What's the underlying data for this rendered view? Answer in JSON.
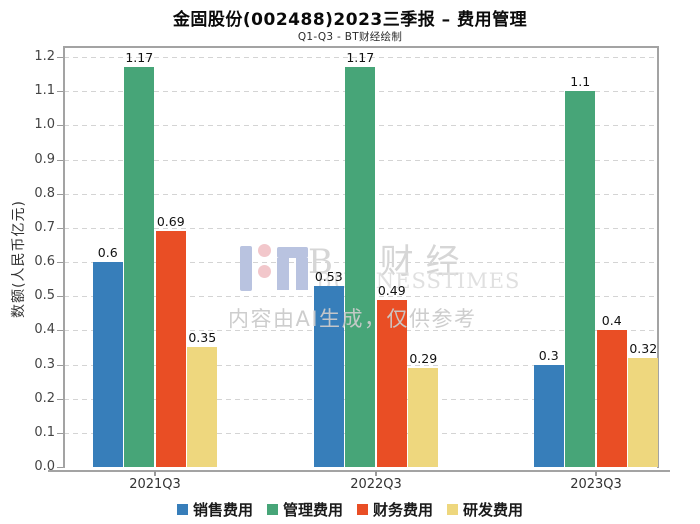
{
  "title": "金固股份(002488)2023三季报 – 费用管理",
  "subtitle": "Q1-Q3 - BT财经绘制",
  "watermark": {
    "brand_cn": "BT财经",
    "brand_en": "BUSINESSTIMES",
    "ai_notice": "内容由AI生成，仅供参考"
  },
  "chart_data": {
    "type": "bar",
    "title": "金固股份(002488)2023三季报 – 费用管理",
    "subtitle": "Q1-Q3 - BT财经绘制",
    "categories": [
      "2021Q3",
      "2022Q3",
      "2023Q3"
    ],
    "series": [
      {
        "key": "sales-expense",
        "name": "销售费用",
        "color": "#377eba",
        "values": [
          0.6,
          0.53,
          0.3
        ]
      },
      {
        "key": "admin-expense",
        "name": "管理费用",
        "color": "#47a578",
        "values": [
          1.17,
          1.17,
          1.1
        ]
      },
      {
        "key": "finance-expense",
        "name": "财务费用",
        "color": "#e94e25",
        "values": [
          0.69,
          0.49,
          0.4
        ]
      },
      {
        "key": "rd-expense",
        "name": "研发费用",
        "color": "#eed77e",
        "values": [
          0.35,
          0.29,
          0.32
        ]
      }
    ],
    "xlabel": "",
    "ylabel": "数额(人民币亿元)",
    "ylim": [
      0,
      1.2
    ],
    "ytick_step": 0.1,
    "grid": true,
    "gridline_style": "dashed",
    "legend_position": "bottom",
    "bar_labels_shown": true
  }
}
